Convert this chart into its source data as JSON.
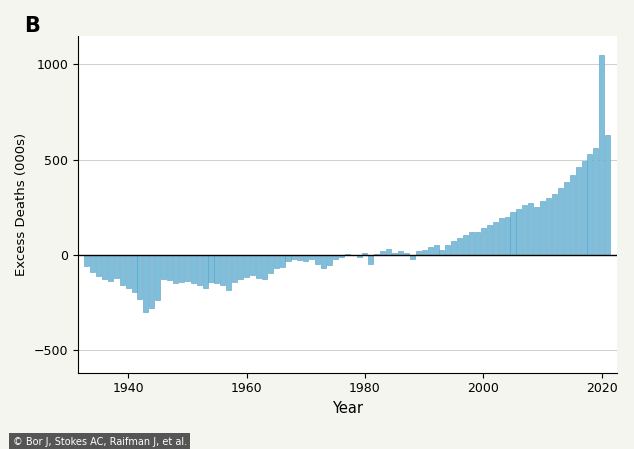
{
  "title_label": "B",
  "ylabel": "Excess Deaths (000s)",
  "xlabel": "Year",
  "caption": "© Bor J, Stokes AC, Raifman J, et al.",
  "bar_color": "#7fbfdc",
  "bar_edge_color": "#5a9fc0",
  "background_color": "#f5f5ef",
  "plot_bg_color": "#ffffff",
  "ylim": [
    -620,
    1150
  ],
  "yticks": [
    -500,
    0,
    500,
    1000
  ],
  "xlim": [
    1931.5,
    2022.5
  ],
  "xticks": [
    1940,
    1960,
    1980,
    2000,
    2020
  ],
  "years": [
    1933,
    1934,
    1935,
    1936,
    1937,
    1938,
    1939,
    1940,
    1941,
    1942,
    1943,
    1944,
    1945,
    1946,
    1947,
    1948,
    1949,
    1950,
    1951,
    1952,
    1953,
    1954,
    1955,
    1956,
    1957,
    1958,
    1959,
    1960,
    1961,
    1962,
    1963,
    1964,
    1965,
    1966,
    1967,
    1968,
    1969,
    1970,
    1971,
    1972,
    1973,
    1974,
    1975,
    1976,
    1977,
    1978,
    1979,
    1980,
    1981,
    1982,
    1983,
    1984,
    1985,
    1986,
    1987,
    1988,
    1989,
    1990,
    1991,
    1992,
    1993,
    1994,
    1995,
    1996,
    1997,
    1998,
    1999,
    2000,
    2001,
    2002,
    2003,
    2004,
    2005,
    2006,
    2007,
    2008,
    2009,
    2010,
    2011,
    2012,
    2013,
    2014,
    2015,
    2016,
    2017,
    2018,
    2019,
    2020,
    2021
  ],
  "values": [
    -60,
    -90,
    -110,
    -130,
    -140,
    -120,
    -160,
    -175,
    -195,
    -230,
    -300,
    -280,
    -240,
    -130,
    -135,
    -150,
    -145,
    -140,
    -150,
    -160,
    -175,
    -145,
    -150,
    -160,
    -185,
    -145,
    -130,
    -115,
    -105,
    -120,
    -130,
    -95,
    -70,
    -65,
    -35,
    -20,
    -30,
    -35,
    -20,
    -50,
    -70,
    -55,
    -20,
    -10,
    5,
    0,
    -10,
    10,
    -50,
    5,
    20,
    30,
    10,
    20,
    10,
    -20,
    20,
    25,
    40,
    50,
    25,
    50,
    70,
    90,
    105,
    120,
    120,
    140,
    155,
    170,
    195,
    200,
    225,
    240,
    260,
    270,
    250,
    280,
    300,
    320,
    350,
    380,
    420,
    460,
    490,
    530,
    560,
    1050,
    630
  ]
}
